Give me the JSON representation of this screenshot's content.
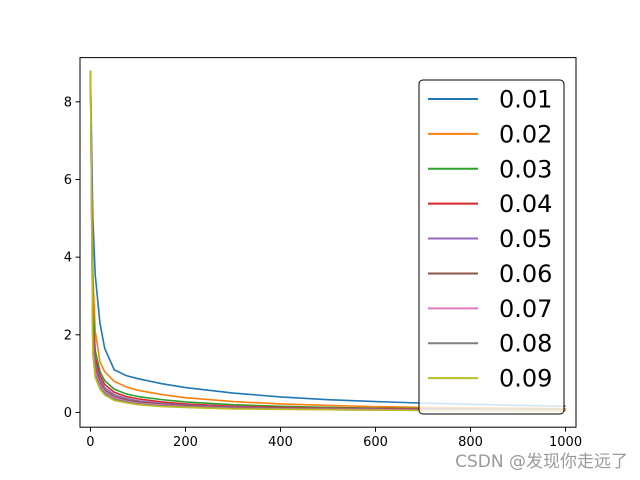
{
  "chart_data": {
    "type": "line",
    "title": "",
    "xlabel": "",
    "ylabel": "",
    "xlim": [
      -22,
      1022
    ],
    "ylim": [
      -0.38,
      9.14
    ],
    "x_ticks": [
      0,
      200,
      400,
      600,
      800,
      1000
    ],
    "y_ticks": [
      0,
      2,
      4,
      6,
      8
    ],
    "grid": false,
    "legend_position": "right",
    "x": [
      0,
      5,
      10,
      20,
      30,
      50,
      75,
      100,
      150,
      200,
      300,
      400,
      500,
      600,
      700,
      800,
      900,
      1000
    ],
    "series": [
      {
        "name": "0.01",
        "color": "#1f77b4",
        "values": [
          8.8,
          5.0,
          3.55,
          2.3,
          1.65,
          1.1,
          0.95,
          0.87,
          0.74,
          0.64,
          0.5,
          0.4,
          0.33,
          0.28,
          0.24,
          0.21,
          0.18,
          0.16
        ]
      },
      {
        "name": "0.02",
        "color": "#ff7f0e",
        "values": [
          8.8,
          3.6,
          2.1,
          1.3,
          1.05,
          0.8,
          0.66,
          0.57,
          0.46,
          0.38,
          0.28,
          0.22,
          0.18,
          0.15,
          0.13,
          0.12,
          0.11,
          0.1
        ]
      },
      {
        "name": "0.03",
        "color": "#2ca02c",
        "values": [
          8.8,
          2.8,
          1.6,
          1.05,
          0.82,
          0.6,
          0.48,
          0.41,
          0.33,
          0.27,
          0.2,
          0.16,
          0.13,
          0.11,
          0.1,
          0.09,
          0.08,
          0.08
        ]
      },
      {
        "name": "0.04",
        "color": "#d62728",
        "values": [
          8.8,
          2.4,
          1.4,
          0.95,
          0.72,
          0.52,
          0.41,
          0.35,
          0.27,
          0.22,
          0.16,
          0.13,
          0.11,
          0.1,
          0.09,
          0.08,
          0.07,
          0.07
        ]
      },
      {
        "name": "0.05",
        "color": "#9467bd",
        "values": [
          8.8,
          2.1,
          1.25,
          0.85,
          0.64,
          0.46,
          0.36,
          0.3,
          0.23,
          0.19,
          0.14,
          0.11,
          0.1,
          0.09,
          0.08,
          0.07,
          0.06,
          0.06
        ]
      },
      {
        "name": "0.06",
        "color": "#8c564b",
        "values": [
          8.8,
          1.9,
          1.15,
          0.78,
          0.58,
          0.41,
          0.32,
          0.27,
          0.21,
          0.17,
          0.13,
          0.1,
          0.09,
          0.08,
          0.07,
          0.06,
          0.06,
          0.05
        ]
      },
      {
        "name": "0.07",
        "color": "#e377c2",
        "values": [
          8.8,
          1.75,
          1.05,
          0.72,
          0.53,
          0.37,
          0.29,
          0.24,
          0.19,
          0.15,
          0.11,
          0.09,
          0.08,
          0.07,
          0.06,
          0.06,
          0.05,
          0.05
        ]
      },
      {
        "name": "0.08",
        "color": "#7f7f7f",
        "values": [
          8.8,
          1.6,
          0.97,
          0.66,
          0.49,
          0.34,
          0.27,
          0.22,
          0.17,
          0.14,
          0.1,
          0.09,
          0.07,
          0.06,
          0.06,
          0.05,
          0.05,
          0.05
        ]
      },
      {
        "name": "0.09",
        "color": "#bcbd22",
        "values": [
          8.8,
          1.5,
          0.9,
          0.6,
          0.45,
          0.31,
          0.25,
          0.2,
          0.15,
          0.13,
          0.09,
          0.08,
          0.07,
          0.06,
          0.05,
          0.05,
          0.04,
          0.04
        ]
      }
    ]
  },
  "watermark": "CSDN @发现你走远了"
}
